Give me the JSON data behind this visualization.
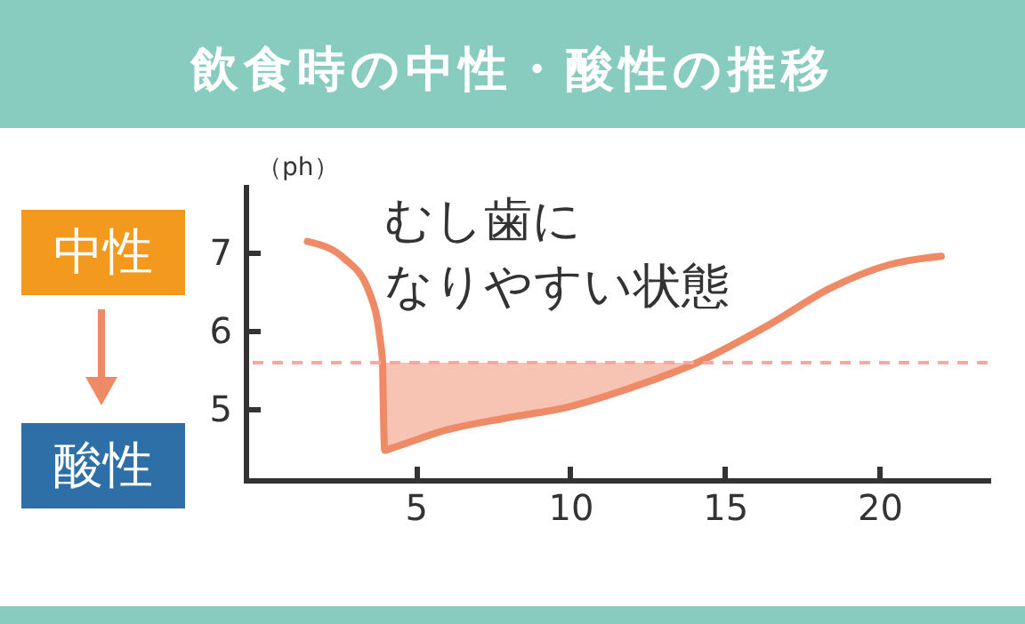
{
  "chart_data": {
    "type": "line",
    "title": "飲食時の中性・酸性の推移",
    "ylabel": "（ph）",
    "annotations": [
      "むし歯に",
      "なりやすい状態",
      "中性",
      "酸性"
    ],
    "x": [
      1.5,
      2.7,
      3.5,
      3.85,
      3.93,
      3.95,
      4.0,
      4.25,
      6.0,
      7.9,
      10.0,
      11.9,
      14.1,
      16.5,
      18.4,
      20.3,
      22.0
    ],
    "series": [
      {
        "color": "#ef8a67",
        "values": [
          7.15,
          6.93,
          6.5,
          5.9,
          5.6,
          5.15,
          4.48,
          4.51,
          4.74,
          4.89,
          5.04,
          5.27,
          5.6,
          6.1,
          6.55,
          6.85,
          6.96
        ],
        "lower": [
          null,
          null,
          null,
          null,
          5.6,
          5.15,
          4.48,
          4.51,
          4.74,
          4.89,
          5.04,
          5.27,
          5.6,
          null,
          null,
          null,
          null
        ],
        "upper": [
          null,
          null,
          null,
          null,
          5.6,
          5.6,
          5.6,
          5.6,
          5.6,
          5.6,
          5.6,
          5.6,
          5.6,
          null,
          null,
          null,
          null
        ]
      }
    ],
    "xlim": [
      -0.5,
      23.5
    ],
    "xticks": [
      5,
      10,
      15,
      20
    ],
    "ylim": [
      4.1,
      7.85
    ],
    "yticks": [
      5,
      6,
      7
    ],
    "ref_lines": [
      {
        "axis": "y",
        "value": 5.6,
        "color": "#f5a9a4",
        "line_style": "dashed"
      }
    ],
    "grid": false,
    "line_style": "solid",
    "marker": "none"
  }
}
